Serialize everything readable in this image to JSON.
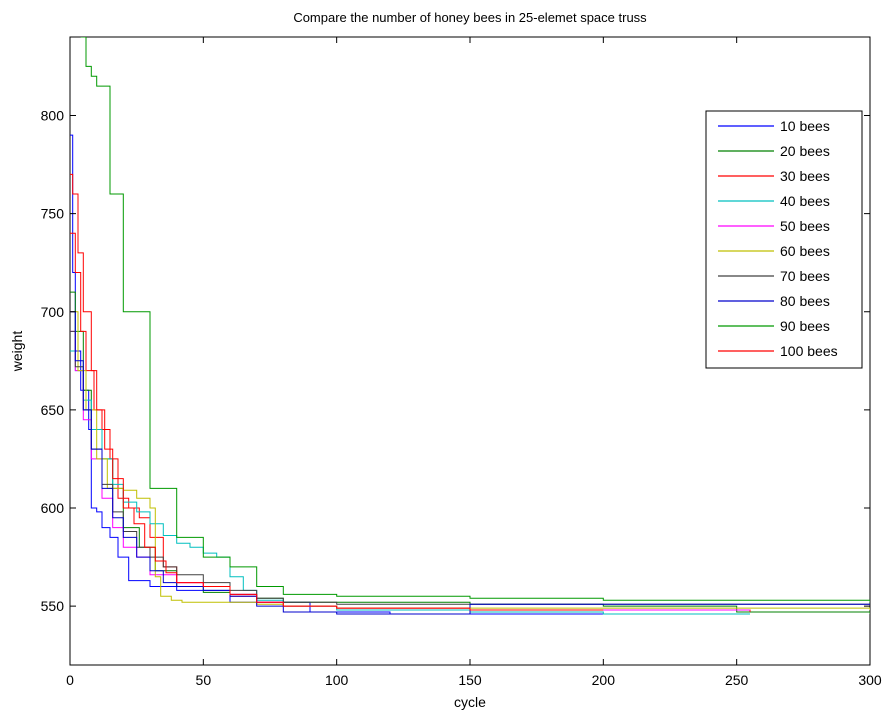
{
  "chart_data": {
    "type": "line",
    "title": "Compare the number of honey bees in 25-elemet space truss",
    "xlabel": "cycle",
    "ylabel": "weight",
    "xlim": [
      0,
      300
    ],
    "ylim": [
      520,
      840
    ],
    "xticks": [
      0,
      50,
      100,
      150,
      200,
      250,
      300
    ],
    "yticks": [
      550,
      600,
      650,
      700,
      750,
      800
    ],
    "grid": false,
    "legend_position": "top-right",
    "series": [
      {
        "name": "10 bees",
        "color": "#0000ff",
        "x": [
          0,
          1,
          2,
          4,
          7,
          8,
          10,
          12,
          15,
          18,
          22,
          30,
          40,
          60,
          90,
          120,
          150,
          200,
          255
        ],
        "y": [
          790,
          720,
          680,
          660,
          640,
          600,
          598,
          590,
          585,
          575,
          563,
          560,
          558,
          552,
          547,
          546,
          546,
          546,
          546
        ]
      },
      {
        "name": "20 bees",
        "color": "#008000",
        "x": [
          0,
          2,
          5,
          8,
          12,
          16,
          20,
          26,
          32,
          40,
          50,
          60,
          70,
          80,
          100,
          150,
          200,
          250,
          300
        ],
        "y": [
          710,
          690,
          660,
          640,
          625,
          610,
          590,
          580,
          568,
          560,
          557,
          556,
          554,
          552,
          552,
          551,
          550,
          547,
          546
        ]
      },
      {
        "name": "30 bees",
        "color": "#ff0000",
        "x": [
          0,
          2,
          4,
          6,
          9,
          12,
          15,
          18,
          22,
          26,
          30,
          35,
          40,
          50,
          60,
          70,
          80,
          100,
          150,
          200,
          255
        ],
        "y": [
          740,
          720,
          690,
          670,
          650,
          640,
          625,
          605,
          600,
          595,
          585,
          570,
          562,
          560,
          555,
          552,
          550,
          549,
          548,
          548,
          547
        ]
      },
      {
        "name": "40 bees",
        "color": "#00bfbf",
        "x": [
          0,
          2,
          5,
          8,
          12,
          16,
          20,
          25,
          30,
          35,
          40,
          45,
          50,
          55,
          60,
          65,
          70,
          80,
          100,
          150,
          200,
          255
        ],
        "y": [
          680,
          670,
          655,
          640,
          625,
          612,
          603,
          598,
          592,
          586,
          582,
          580,
          577,
          575,
          565,
          558,
          553,
          550,
          548,
          547,
          546,
          546
        ]
      },
      {
        "name": "50 bees",
        "color": "#ff00ff",
        "x": [
          0,
          2,
          5,
          8,
          12,
          16,
          20,
          25,
          30,
          40,
          50,
          60,
          70,
          80,
          100,
          150,
          200,
          255
        ],
        "y": [
          690,
          670,
          645,
          625,
          605,
          590,
          580,
          575,
          566,
          562,
          560,
          556,
          552,
          550,
          549,
          548,
          548,
          548
        ]
      },
      {
        "name": "60 bees",
        "color": "#bfbf00",
        "x": [
          0,
          3,
          6,
          10,
          14,
          18,
          20,
          25,
          30,
          32,
          34,
          38,
          42,
          50,
          60,
          70,
          80,
          100,
          150,
          200,
          250,
          300
        ],
        "y": [
          700,
          670,
          650,
          625,
          610,
          610,
          609,
          605,
          600,
          565,
          555,
          553,
          552,
          552,
          552,
          551,
          550,
          549,
          549,
          549,
          549,
          548
        ]
      },
      {
        "name": "70 bees",
        "color": "#404040",
        "x": [
          0,
          2,
          5,
          8,
          12,
          16,
          20,
          25,
          30,
          35,
          40,
          50,
          60,
          70,
          80,
          100,
          120,
          150,
          200,
          250,
          300
        ],
        "y": [
          690,
          672,
          650,
          630,
          612,
          598,
          588,
          580,
          575,
          570,
          566,
          562,
          558,
          554,
          552,
          551,
          551,
          551,
          551,
          551,
          551
        ]
      },
      {
        "name": "80 bees",
        "color": "#0000cc",
        "x": [
          0,
          2,
          5,
          8,
          12,
          16,
          20,
          25,
          30,
          35,
          40,
          50,
          60,
          70,
          80,
          100,
          130,
          150,
          200,
          250,
          300
        ],
        "y": [
          700,
          675,
          650,
          630,
          610,
          595,
          585,
          575,
          568,
          562,
          560,
          558,
          555,
          550,
          547,
          546,
          546,
          551,
          551,
          551,
          551
        ]
      },
      {
        "name": "90 bees",
        "color": "#009900",
        "x": [
          4,
          6,
          8,
          10,
          15,
          20,
          30,
          40,
          50,
          60,
          70,
          80,
          100,
          150,
          200,
          250,
          300
        ],
        "y": [
          840,
          825,
          820,
          815,
          760,
          700,
          610,
          585,
          575,
          570,
          560,
          556,
          555,
          554,
          553,
          553,
          552
        ]
      },
      {
        "name": "100 bees",
        "color": "#ff0000",
        "x": [
          0,
          1,
          3,
          5,
          8,
          10,
          13,
          16,
          20,
          24,
          28,
          32,
          36,
          40,
          50,
          60,
          70,
          80,
          100,
          150,
          200
        ],
        "y": [
          770,
          760,
          730,
          700,
          670,
          650,
          630,
          615,
          600,
          592,
          580,
          573,
          567,
          562,
          560,
          556,
          552,
          550,
          549,
          548,
          548
        ]
      }
    ]
  }
}
